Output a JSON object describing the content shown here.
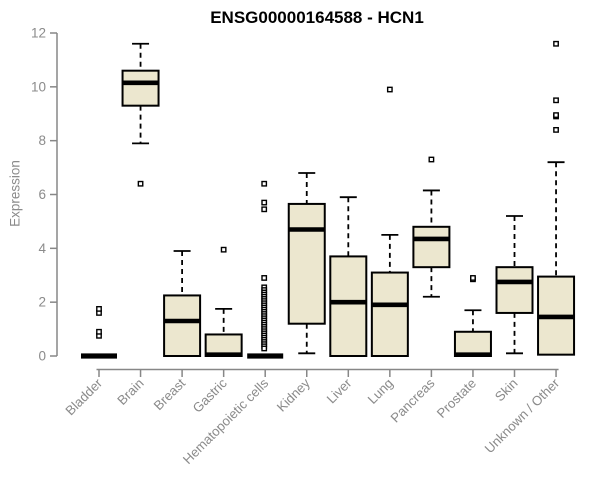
{
  "header": {
    "title": "ENSG00000164588 - HCN1"
  },
  "colors": {
    "box_fill": "#ece7cf",
    "box_stroke": "#000000",
    "median": "#000000",
    "axis": "#878787",
    "tick_label": "#8b8b8b",
    "title": "#000000",
    "outlier_fill": "#ffffff"
  },
  "chart_data": {
    "type": "boxplot",
    "title": "ENSG00000164588 - HCN1",
    "xlabel": "",
    "ylabel": "Expression",
    "ylim": [
      0,
      12
    ],
    "yticks": [
      0,
      2,
      4,
      6,
      8,
      10,
      12
    ],
    "grid": false,
    "legend": false,
    "categories": [
      "Bladder",
      "Brain",
      "Breast",
      "Gastric",
      "Hematopoietic cells",
      "Kidney",
      "Liver",
      "Lung",
      "Pancreas",
      "Prostate",
      "Skin",
      "Unknown / Other"
    ],
    "series": [
      {
        "name": "Bladder",
        "low": 0,
        "q1": 0,
        "median": 0,
        "q3": 0,
        "high": 0,
        "outliers": [
          0.75,
          0.9,
          1.6,
          1.75
        ]
      },
      {
        "name": "Brain",
        "low": 7.9,
        "q1": 9.3,
        "median": 10.15,
        "q3": 10.6,
        "high": 11.6,
        "outliers": [
          6.4
        ]
      },
      {
        "name": "Breast",
        "low": 0,
        "q1": 0,
        "median": 1.3,
        "q3": 2.25,
        "high": 3.9,
        "outliers": []
      },
      {
        "name": "Gastric",
        "low": 0,
        "q1": 0,
        "median": 0.05,
        "q3": 0.8,
        "high": 1.75,
        "outliers": [
          3.95
        ]
      },
      {
        "name": "Hematopoietic cells",
        "low": 0,
        "q1": 0,
        "median": 0,
        "q3": 0,
        "high": 0,
        "outliers": [
          6.4,
          5.7,
          5.45,
          2.9,
          2.55,
          2.45,
          2.36,
          2.28,
          2.2,
          2.12,
          2.04,
          1.96,
          1.88,
          1.8,
          1.72,
          1.64,
          1.56,
          1.48,
          1.4,
          1.32,
          1.24,
          1.16,
          1.08,
          1.0,
          0.92,
          0.84,
          0.76,
          0.68,
          0.6,
          0.52,
          0.44,
          0.36,
          0.28
        ]
      },
      {
        "name": "Kidney",
        "low": 0.1,
        "q1": 1.2,
        "median": 4.7,
        "q3": 5.65,
        "high": 6.8,
        "outliers": []
      },
      {
        "name": "Liver",
        "low": 0,
        "q1": 0,
        "median": 2.0,
        "q3": 3.7,
        "high": 5.9,
        "outliers": []
      },
      {
        "name": "Lung",
        "low": 0,
        "q1": 0,
        "median": 1.9,
        "q3": 3.1,
        "high": 4.5,
        "outliers": [
          9.9
        ]
      },
      {
        "name": "Pancreas",
        "low": 2.2,
        "q1": 3.3,
        "median": 4.35,
        "q3": 4.8,
        "high": 6.15,
        "outliers": [
          7.3
        ]
      },
      {
        "name": "Prostate",
        "low": 0,
        "q1": 0,
        "median": 0.05,
        "q3": 0.9,
        "high": 1.7,
        "outliers": [
          2.85,
          2.9
        ]
      },
      {
        "name": "Skin",
        "low": 0.1,
        "q1": 1.6,
        "median": 2.75,
        "q3": 3.3,
        "high": 5.2,
        "outliers": []
      },
      {
        "name": "Unknown / Other",
        "low": 0.05,
        "q1": 0.05,
        "median": 1.45,
        "q3": 2.95,
        "high": 7.2,
        "outliers": [
          8.4,
          8.9,
          8.95,
          9.5,
          11.6
        ]
      }
    ]
  }
}
